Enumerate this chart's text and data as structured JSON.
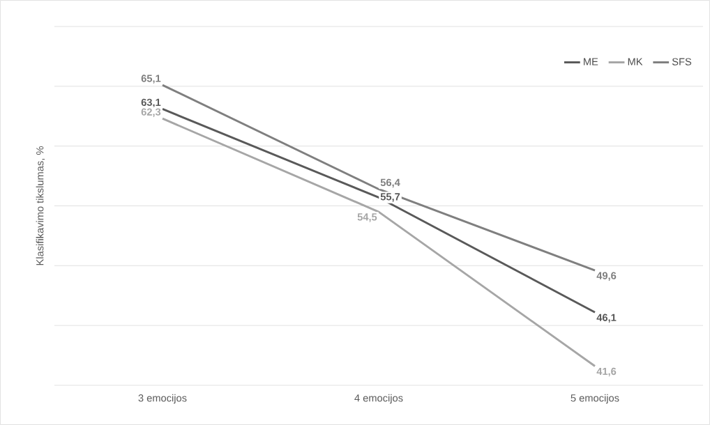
{
  "chart_data": {
    "type": "line",
    "ylabel": "Klasifikavimo tikslumas, %",
    "categories": [
      "3 emocijos",
      "4 emocijos",
      "5 emocijos"
    ],
    "series": [
      {
        "name": "ME",
        "color": "#595959",
        "values": [
          63.1,
          55.7,
          46.1
        ],
        "value_labels": [
          "63,1",
          "55,7",
          "46,1"
        ]
      },
      {
        "name": "MK",
        "color": "#a6a6a6",
        "values": [
          62.3,
          54.5,
          41.6
        ],
        "value_labels": [
          "62,3",
          "54,5",
          "41,6"
        ]
      },
      {
        "name": "SFS",
        "color": "#7f7f7f",
        "values": [
          65.1,
          56.4,
          49.6
        ],
        "value_labels": [
          "65,1",
          "56,4",
          "49,6"
        ]
      }
    ],
    "ylim": [
      40,
      70
    ],
    "yticks": [
      {
        "value": 40,
        "label": null
      },
      {
        "value": 45,
        "label": null
      },
      {
        "value": 50,
        "label": null
      },
      {
        "value": 55,
        "label": null
      },
      {
        "value": 60,
        "label": null
      },
      {
        "value": 65,
        "label": null
      },
      {
        "value": 70,
        "label": null
      }
    ],
    "tick_labels": "x",
    "grid": "y",
    "legend": "top right",
    "marker": "none",
    "line_style": "solid"
  }
}
